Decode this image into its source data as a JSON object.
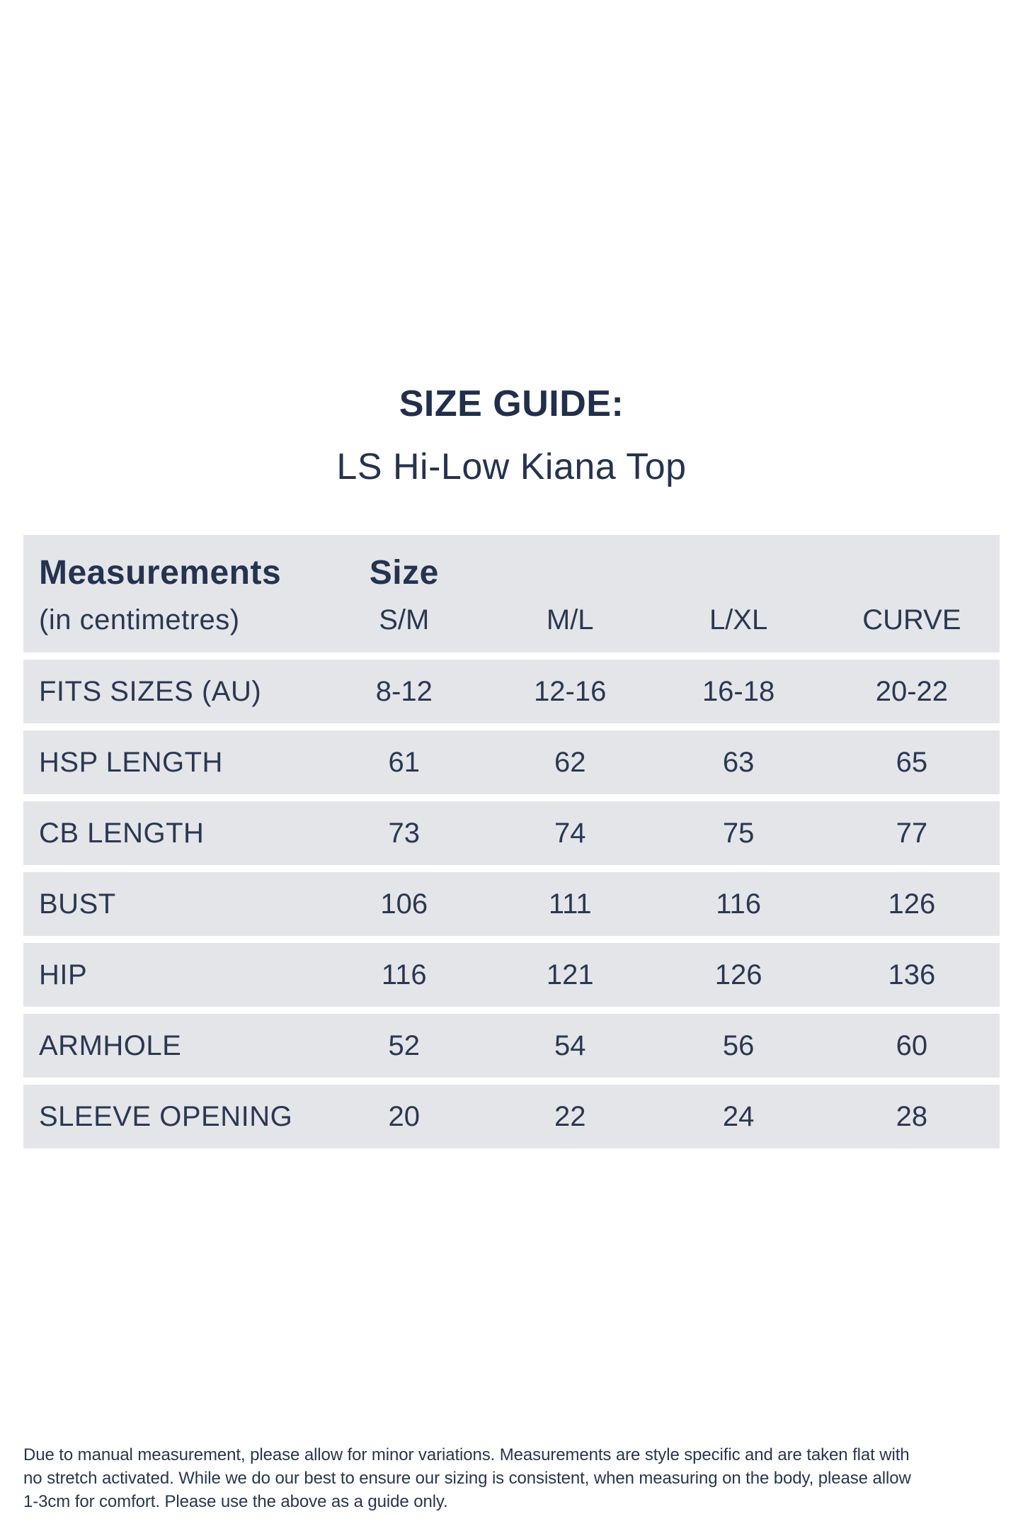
{
  "page": {
    "title": "SIZE GUIDE:",
    "subtitle": "LS Hi-Low Kiana Top"
  },
  "table": {
    "header": {
      "measurements_label": "Measurements",
      "measurements_unit": "(in centimetres)",
      "size_label": "Size",
      "size_columns": [
        "S/M",
        "M/L",
        "L/XL",
        "CURVE"
      ]
    },
    "rows": [
      {
        "label": "FITS SIZES (AU)",
        "values": [
          "8-12",
          "12-16",
          "16-18",
          "20-22"
        ]
      },
      {
        "label": "HSP LENGTH",
        "values": [
          "61",
          "62",
          "63",
          "65"
        ]
      },
      {
        "label": "CB LENGTH",
        "values": [
          "73",
          "74",
          "75",
          "77"
        ]
      },
      {
        "label": "BUST",
        "values": [
          "106",
          "111",
          "116",
          "126"
        ]
      },
      {
        "label": "HIP",
        "values": [
          "116",
          "121",
          "126",
          "136"
        ]
      },
      {
        "label": "ARMHOLE",
        "values": [
          "52",
          "54",
          "56",
          "60"
        ]
      },
      {
        "label": "SLEEVE OPENING",
        "values": [
          "20",
          "22",
          "24",
          "28"
        ]
      }
    ]
  },
  "footer": {
    "lines": [
      "Due to manual measurement, please allow for minor variations. Measurements are style specific and are taken flat with",
      "no stretch activated. While we do our best to ensure our sizing is consistent, when measuring on the body, please allow",
      "1-3cm for comfort. Please use the above as a guide only."
    ]
  },
  "colors": {
    "text_navy": "#2a3852",
    "heading_navy": "#243350",
    "row_background": "#e4e5e8",
    "page_background": "#ffffff"
  }
}
